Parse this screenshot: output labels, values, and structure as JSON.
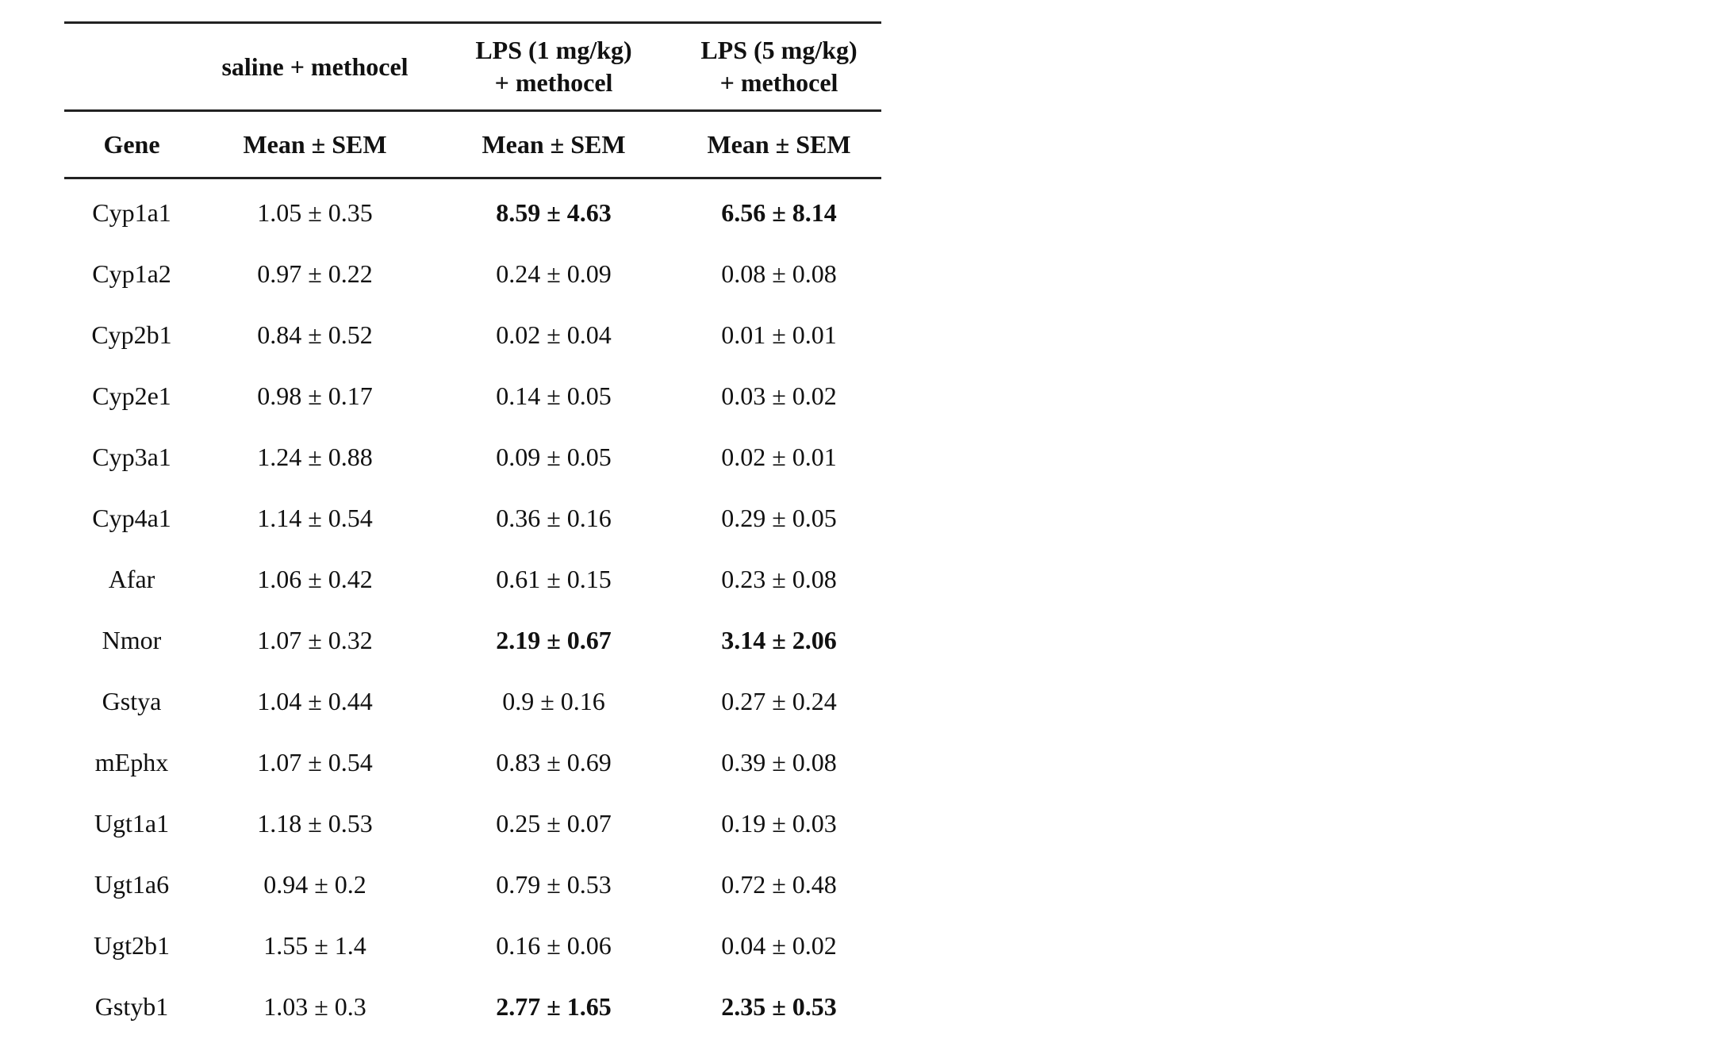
{
  "table": {
    "group_headers": [
      "",
      "saline + methocel",
      "LPS (1 mg/kg)\n+ methocel",
      "LPS (5 mg/kg)\n+ methocel"
    ],
    "sub_headers": [
      "Gene",
      "Mean ± SEM",
      "Mean ± SEM",
      "Mean ± SEM"
    ],
    "rows": [
      {
        "gene": "Cyp1a1",
        "saline": "1.05 ± 0.35",
        "lps1": "8.59 ± 4.63",
        "lps5": "6.56 ± 8.14",
        "bold": [
          false,
          false,
          true,
          true
        ]
      },
      {
        "gene": "Cyp1a2",
        "saline": "0.97 ± 0.22",
        "lps1": "0.24 ± 0.09",
        "lps5": "0.08 ± 0.08",
        "bold": [
          false,
          false,
          false,
          false
        ]
      },
      {
        "gene": "Cyp2b1",
        "saline": "0.84 ± 0.52",
        "lps1": "0.02 ± 0.04",
        "lps5": "0.01 ± 0.01",
        "bold": [
          false,
          false,
          false,
          false
        ]
      },
      {
        "gene": "Cyp2e1",
        "saline": "0.98 ± 0.17",
        "lps1": "0.14 ± 0.05",
        "lps5": "0.03 ± 0.02",
        "bold": [
          false,
          false,
          false,
          false
        ]
      },
      {
        "gene": "Cyp3a1",
        "saline": "1.24 ± 0.88",
        "lps1": "0.09 ± 0.05",
        "lps5": "0.02 ± 0.01",
        "bold": [
          false,
          false,
          false,
          false
        ]
      },
      {
        "gene": "Cyp4a1",
        "saline": "1.14 ± 0.54",
        "lps1": "0.36 ± 0.16",
        "lps5": "0.29 ± 0.05",
        "bold": [
          false,
          false,
          false,
          false
        ]
      },
      {
        "gene": "Afar",
        "saline": "1.06 ± 0.42",
        "lps1": "0.61 ± 0.15",
        "lps5": "0.23 ± 0.08",
        "bold": [
          false,
          false,
          false,
          false
        ]
      },
      {
        "gene": "Nmor",
        "saline": "1.07 ± 0.32",
        "lps1": "2.19 ± 0.67",
        "lps5": "3.14 ± 2.06",
        "bold": [
          false,
          false,
          true,
          true
        ]
      },
      {
        "gene": "Gstya",
        "saline": "1.04 ± 0.44",
        "lps1": "0.9 ± 0.16",
        "lps5": "0.27 ± 0.24",
        "bold": [
          false,
          false,
          false,
          false
        ]
      },
      {
        "gene": "mEphx",
        "saline": "1.07 ± 0.54",
        "lps1": "0.83 ± 0.69",
        "lps5": "0.39 ± 0.08",
        "bold": [
          false,
          false,
          false,
          false
        ]
      },
      {
        "gene": "Ugt1a1",
        "saline": "1.18 ± 0.53",
        "lps1": "0.25 ± 0.07",
        "lps5": "0.19 ± 0.03",
        "bold": [
          false,
          false,
          false,
          false
        ]
      },
      {
        "gene": "Ugt1a6",
        "saline": "0.94 ± 0.2",
        "lps1": "0.79 ± 0.53",
        "lps5": "0.72 ± 0.48",
        "bold": [
          false,
          false,
          false,
          false
        ]
      },
      {
        "gene": "Ugt2b1",
        "saline": "1.55 ± 1.4",
        "lps1": "0.16 ± 0.06",
        "lps5": "0.04 ± 0.02",
        "bold": [
          false,
          false,
          false,
          false
        ]
      },
      {
        "gene": "Gstyb1",
        "saline": "1.03 ± 0.3",
        "lps1": "2.77 ± 1.65",
        "lps5": "2.35 ± 0.53",
        "bold": [
          false,
          false,
          true,
          true
        ]
      }
    ]
  }
}
